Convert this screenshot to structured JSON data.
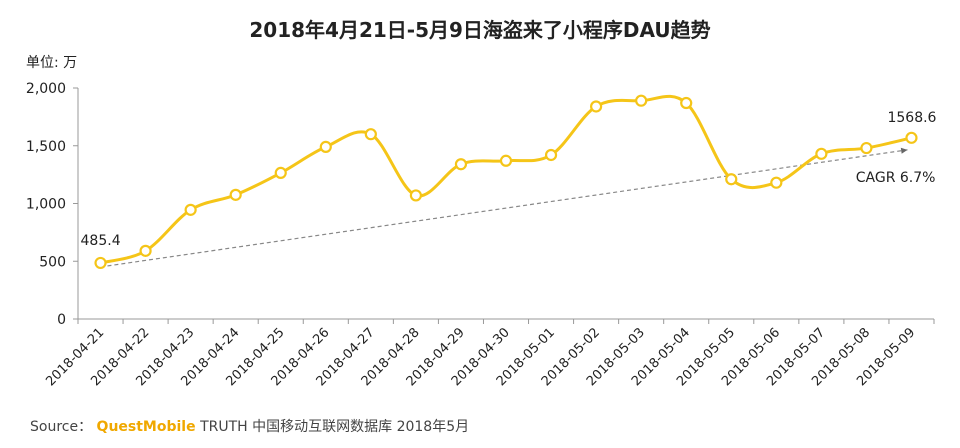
{
  "title": "2018年4月21日-5月9日海盗来了小程序DAU趋势",
  "unit_label": "单位: 万",
  "source": {
    "prefix": "Source：",
    "brand": "QuestMobile",
    "text": "TRUTH 中国移动互联网数据库 2018年5月"
  },
  "colors": {
    "line": "#f5c518",
    "trend": "#888888",
    "axis": "#999999"
  },
  "chart_data": {
    "type": "line",
    "title": "2018年4月21日-5月9日海盗来了小程序DAU趋势",
    "ylabel": "单位: 万",
    "xlabel": "",
    "ylim": [
      0,
      2000
    ],
    "yticks": [
      0,
      500,
      1000,
      1500,
      2000
    ],
    "ytick_labels": [
      "0",
      "500",
      "1,000",
      "1,500",
      "2,000"
    ],
    "grid": false,
    "categories": [
      "2018-04-21",
      "2018-04-22",
      "2018-04-23",
      "2018-04-24",
      "2018-04-25",
      "2018-04-26",
      "2018-04-27",
      "2018-04-28",
      "2018-04-29",
      "2018-04-30",
      "2018-05-01",
      "2018-05-02",
      "2018-05-03",
      "2018-05-04",
      "2018-05-05",
      "2018-05-06",
      "2018-05-07",
      "2018-05-08",
      "2018-05-09"
    ],
    "series": [
      {
        "values": [
          485.4,
          590,
          945,
          1075,
          1265,
          1490,
          1600,
          1070,
          1340,
          1370,
          1420,
          1840,
          1890,
          1870,
          1210,
          1180,
          1430,
          1480,
          1568.6
        ]
      }
    ],
    "data_labels": [
      {
        "index": 0,
        "text": "485.4"
      },
      {
        "index": 18,
        "text": "1568.6"
      }
    ],
    "trendline": {
      "from_index": 0,
      "to_index": 18,
      "label": "CAGR 6.7%"
    }
  }
}
